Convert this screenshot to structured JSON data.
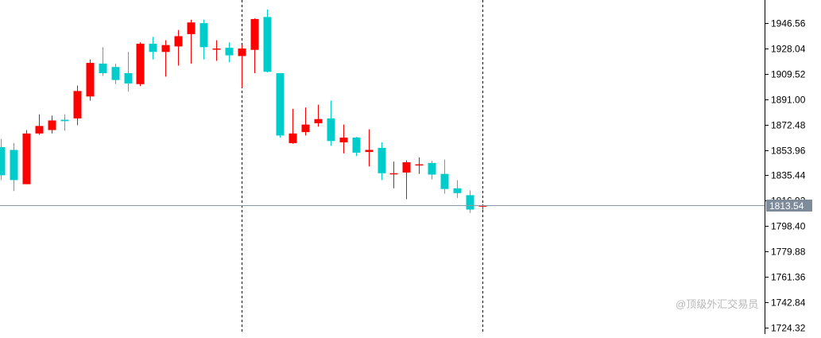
{
  "chart_data": {
    "type": "candlestick",
    "title": "",
    "ylim": [
      1720,
      1970
    ],
    "y_ticks": [
      "1946.56",
      "1928.04",
      "1909.52",
      "1891.00",
      "1872.48",
      "1853.96",
      "1835.44",
      "1816.92",
      "1798.40",
      "1779.88",
      "1761.36",
      "1742.84",
      "1724.32"
    ],
    "current_price": "1813.54",
    "colors": {
      "up": "#ff0000",
      "down": "#00cccc",
      "grid": "#000000",
      "price_line": "#8c9aa8",
      "label_bg": "#7d8b9a"
    },
    "candles": [
      {
        "o": 1856.0,
        "c": 1835.5,
        "h": 1862.0,
        "l": 1832.0
      },
      {
        "o": 1854.0,
        "c": 1832.0,
        "h": 1859.0,
        "l": 1824.0
      },
      {
        "o": 1829.0,
        "c": 1866.0,
        "h": 1868.5,
        "l": 1829.0
      },
      {
        "o": 1866.0,
        "c": 1871.5,
        "h": 1880.0,
        "l": 1865.0
      },
      {
        "o": 1868.5,
        "c": 1875.5,
        "h": 1879.0,
        "l": 1866.0
      },
      {
        "o": 1876.0,
        "c": 1875.0,
        "h": 1880.0,
        "l": 1868.0
      },
      {
        "o": 1877.0,
        "c": 1897.0,
        "h": 1901.0,
        "l": 1872.0
      },
      {
        "o": 1893.0,
        "c": 1917.5,
        "h": 1920.0,
        "l": 1890.0
      },
      {
        "o": 1917.0,
        "c": 1910.0,
        "h": 1929.0,
        "l": 1908.0
      },
      {
        "o": 1914.5,
        "c": 1905.0,
        "h": 1917.0,
        "l": 1902.0
      },
      {
        "o": 1910.0,
        "c": 1902.5,
        "h": 1925.5,
        "l": 1896.5
      },
      {
        "o": 1902.0,
        "c": 1931.5,
        "h": 1932.5,
        "l": 1900.5
      },
      {
        "o": 1931.5,
        "c": 1925.5,
        "h": 1936.5,
        "l": 1920.0
      },
      {
        "o": 1925.5,
        "c": 1930.5,
        "h": 1934.0,
        "l": 1907.5
      },
      {
        "o": 1929.5,
        "c": 1937.0,
        "h": 1941.5,
        "l": 1915.5
      },
      {
        "o": 1938.5,
        "c": 1947.0,
        "h": 1949.0,
        "l": 1917.0
      },
      {
        "o": 1946.5,
        "c": 1929.0,
        "h": 1949.0,
        "l": 1920.0
      },
      {
        "o": 1928.0,
        "c": 1928.0,
        "h": 1934.0,
        "l": 1919.0
      },
      {
        "o": 1928.5,
        "c": 1923.0,
        "h": 1932.5,
        "l": 1918.0
      },
      {
        "o": 1922.5,
        "c": 1928.0,
        "h": 1930.5,
        "l": 1899.5
      },
      {
        "o": 1927.0,
        "c": 1949.5,
        "h": 1950.0,
        "l": 1910.0
      },
      {
        "o": 1951.0,
        "c": 1911.0,
        "h": 1956.5,
        "l": 1910.5
      },
      {
        "o": 1910.0,
        "c": 1864.5,
        "h": 1910.0,
        "l": 1863.0
      },
      {
        "o": 1859.0,
        "c": 1866.0,
        "h": 1884.0,
        "l": 1858.5
      },
      {
        "o": 1867.0,
        "c": 1872.5,
        "h": 1885.0,
        "l": 1864.5
      },
      {
        "o": 1873.5,
        "c": 1876.5,
        "h": 1887.0,
        "l": 1871.0
      },
      {
        "o": 1877.0,
        "c": 1860.5,
        "h": 1890.0,
        "l": 1857.0
      },
      {
        "o": 1859.5,
        "c": 1863.0,
        "h": 1872.5,
        "l": 1851.5
      },
      {
        "o": 1863.0,
        "c": 1852.0,
        "h": 1863.5,
        "l": 1849.5
      },
      {
        "o": 1852.5,
        "c": 1854.0,
        "h": 1869.0,
        "l": 1842.0
      },
      {
        "o": 1855.5,
        "c": 1837.0,
        "h": 1859.5,
        "l": 1832.0
      },
      {
        "o": 1837.0,
        "c": 1837.0,
        "h": 1845.5,
        "l": 1826.0
      },
      {
        "o": 1837.5,
        "c": 1845.0,
        "h": 1846.5,
        "l": 1818.0
      },
      {
        "o": 1843.5,
        "c": 1843.5,
        "h": 1848.5,
        "l": 1836.5
      },
      {
        "o": 1844.5,
        "c": 1836.0,
        "h": 1846.0,
        "l": 1832.5
      },
      {
        "o": 1836.5,
        "c": 1825.5,
        "h": 1847.0,
        "l": 1822.0
      },
      {
        "o": 1826.0,
        "c": 1822.5,
        "h": 1832.0,
        "l": 1819.0
      },
      {
        "o": 1821.0,
        "c": 1810.5,
        "h": 1824.5,
        "l": 1808.0
      },
      {
        "o": 1813.0,
        "c": 1813.5,
        "h": 1814.5,
        "l": 1810.5
      }
    ],
    "vertical_markers": [
      19,
      38
    ],
    "grid": false,
    "watermark": "@顶级外汇交易员"
  }
}
